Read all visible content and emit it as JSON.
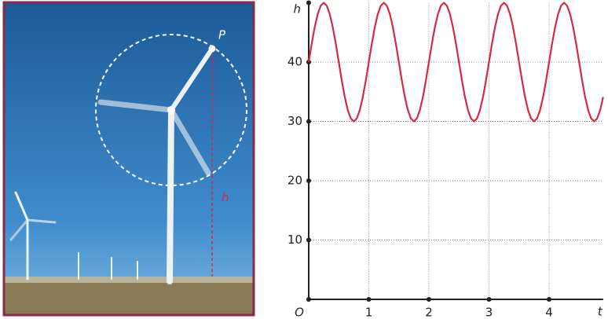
{
  "photo": {
    "point_label": "P",
    "height_label": "h"
  },
  "chart_data": {
    "type": "line",
    "x_label": "t",
    "y_label": "h",
    "origin_label": "O",
    "x": [
      0,
      0.05,
      0.1,
      0.15,
      0.2,
      0.25,
      0.3,
      0.35,
      0.4,
      0.45,
      0.5,
      0.55,
      0.6,
      0.65,
      0.7,
      0.75,
      0.8,
      0.85,
      0.9,
      0.95,
      1,
      1.05,
      1.1,
      1.15,
      1.2,
      1.25,
      1.3,
      1.35,
      1.4,
      1.45,
      1.5,
      1.55,
      1.6,
      1.65,
      1.7,
      1.75,
      1.8,
      1.85,
      1.9,
      1.95,
      2,
      2.05,
      2.1,
      2.15,
      2.2,
      2.25,
      2.3,
      2.35,
      2.4,
      2.45,
      2.5,
      2.55,
      2.6,
      2.65,
      2.7,
      2.75,
      2.8,
      2.85,
      2.9,
      2.95,
      3,
      3.05,
      3.1,
      3.15,
      3.2,
      3.25,
      3.3,
      3.35,
      3.4,
      3.45,
      3.5,
      3.55,
      3.6,
      3.65,
      3.7,
      3.75,
      3.8,
      3.85,
      3.9,
      3.95,
      4,
      4.05,
      4.1,
      4.15,
      4.2,
      4.25,
      4.3,
      4.35,
      4.4,
      4.45,
      4.5,
      4.55,
      4.6,
      4.65,
      4.7,
      4.75,
      4.8,
      4.85,
      4.9
    ],
    "series": [
      {
        "color": "#d42a45",
        "values": [
          40,
          43.1,
          45.9,
          48.1,
          49.5,
          50,
          49.5,
          48.1,
          45.9,
          43.1,
          40,
          36.9,
          34.1,
          31.9,
          30.5,
          30,
          30.5,
          31.9,
          34.1,
          36.9,
          40,
          43.1,
          45.9,
          48.1,
          49.5,
          50,
          49.5,
          48.1,
          45.9,
          43.1,
          40,
          36.9,
          34.1,
          31.9,
          30.5,
          30,
          30.5,
          31.9,
          34.1,
          36.9,
          40,
          43.1,
          45.9,
          48.1,
          49.5,
          50,
          49.5,
          48.1,
          45.9,
          43.1,
          40,
          36.9,
          34.1,
          31.9,
          30.5,
          30,
          30.5,
          31.9,
          34.1,
          36.9,
          40,
          43.1,
          45.9,
          48.1,
          49.5,
          50,
          49.5,
          48.1,
          45.9,
          43.1,
          40,
          36.9,
          34.1,
          31.9,
          30.5,
          30,
          30.5,
          31.9,
          34.1,
          36.9,
          40,
          43.1,
          45.9,
          48.1,
          49.5,
          50,
          49.5,
          48.1,
          45.9,
          43.1,
          40,
          36.9,
          34.1,
          31.9,
          30.5,
          30,
          30.5,
          31.9,
          34.1
        ]
      }
    ],
    "xlim": [
      0,
      4.9
    ],
    "ylim": [
      0,
      50
    ],
    "xticks": [
      1,
      2,
      3,
      4
    ],
    "yticks": [
      10,
      20,
      30,
      40
    ],
    "grid": true
  }
}
